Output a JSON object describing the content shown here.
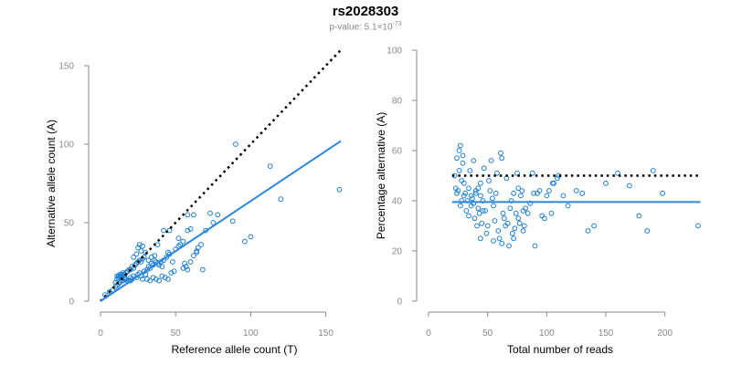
{
  "header": {
    "title": "rs2028303",
    "pvalue_prefix": "p-value: 5.1×10",
    "pvalue_exp": "-73"
  },
  "colors": {
    "points": "#1f7fd6",
    "fit": "#2a86e0",
    "reference": "#000000",
    "axis": "#8a8a8a"
  },
  "chart_data": [
    {
      "type": "scatter",
      "name": "left",
      "xlabel": "Reference allele count (T)",
      "ylabel": "Alternative allele count (A)",
      "xlim": [
        0,
        160
      ],
      "ylim": [
        0,
        150
      ],
      "xticks": [
        0,
        50,
        100,
        150
      ],
      "yticks": [
        0,
        50,
        100,
        150
      ],
      "reference_line": {
        "style": "dotted",
        "x": [
          0,
          160
        ],
        "y": [
          0,
          160
        ]
      },
      "fit_line": {
        "style": "solid",
        "x": [
          0,
          160
        ],
        "y": [
          0,
          102
        ]
      },
      "points": [
        [
          3,
          4
        ],
        [
          6,
          6
        ],
        [
          8,
          7
        ],
        [
          10,
          9
        ],
        [
          11,
          10
        ],
        [
          12,
          11
        ],
        [
          13,
          12
        ],
        [
          14,
          13
        ],
        [
          15,
          13
        ],
        [
          16,
          14
        ],
        [
          10,
          12
        ],
        [
          11,
          14
        ],
        [
          12,
          15
        ],
        [
          13,
          16
        ],
        [
          14,
          15
        ],
        [
          15,
          16
        ],
        [
          16,
          17
        ],
        [
          17,
          18
        ],
        [
          18,
          19
        ],
        [
          19,
          20
        ],
        [
          11,
          16
        ],
        [
          12,
          16
        ],
        [
          13,
          17
        ],
        [
          14,
          17
        ],
        [
          15,
          18
        ],
        [
          16,
          15
        ],
        [
          17,
          14
        ],
        [
          18,
          13
        ],
        [
          19,
          13
        ],
        [
          20,
          15
        ],
        [
          20,
          20
        ],
        [
          21,
          22
        ],
        [
          22,
          21
        ],
        [
          23,
          23
        ],
        [
          24,
          24
        ],
        [
          25,
          25
        ],
        [
          26,
          26
        ],
        [
          27,
          25
        ],
        [
          28,
          27
        ],
        [
          29,
          28
        ],
        [
          20,
          13
        ],
        [
          21,
          14
        ],
        [
          22,
          16
        ],
        [
          24,
          15
        ],
        [
          25,
          17
        ],
        [
          26,
          18
        ],
        [
          27,
          16
        ],
        [
          28,
          14
        ],
        [
          29,
          19
        ],
        [
          30,
          17
        ],
        [
          31,
          20
        ],
        [
          32,
          22
        ],
        [
          33,
          21
        ],
        [
          34,
          24
        ],
        [
          35,
          23
        ],
        [
          36,
          26
        ],
        [
          37,
          25
        ],
        [
          38,
          24
        ],
        [
          39,
          23
        ],
        [
          40,
          25
        ],
        [
          22,
          28
        ],
        [
          24,
          30
        ],
        [
          25,
          34
        ],
        [
          26,
          36
        ],
        [
          27,
          32
        ],
        [
          28,
          35
        ],
        [
          30,
          31
        ],
        [
          32,
          26
        ],
        [
          34,
          28
        ],
        [
          36,
          29
        ],
        [
          31,
          14
        ],
        [
          33,
          13
        ],
        [
          35,
          15
        ],
        [
          37,
          14
        ],
        [
          39,
          13
        ],
        [
          41,
          16
        ],
        [
          43,
          15
        ],
        [
          45,
          14
        ],
        [
          47,
          18
        ],
        [
          49,
          19
        ],
        [
          41,
          22
        ],
        [
          42,
          26
        ],
        [
          44,
          28
        ],
        [
          45,
          31
        ],
        [
          46,
          30
        ],
        [
          48,
          25
        ],
        [
          50,
          33
        ],
        [
          52,
          35
        ],
        [
          53,
          36
        ],
        [
          55,
          38
        ],
        [
          42,
          45
        ],
        [
          38,
          36
        ],
        [
          46,
          45
        ],
        [
          55,
          21
        ],
        [
          56,
          24
        ],
        [
          57,
          22
        ],
        [
          58,
          20
        ],
        [
          60,
          25
        ],
        [
          62,
          29
        ],
        [
          64,
          31
        ],
        [
          65,
          34
        ],
        [
          67,
          36
        ],
        [
          68,
          20
        ],
        [
          52,
          40
        ],
        [
          58,
          45
        ],
        [
          60,
          46
        ],
        [
          70,
          45
        ],
        [
          73,
          56
        ],
        [
          75,
          50
        ],
        [
          78,
          55
        ],
        [
          58,
          55
        ],
        [
          62,
          55
        ],
        [
          64,
          32
        ],
        [
          88,
          51
        ],
        [
          90,
          100
        ],
        [
          96,
          38
        ],
        [
          100,
          41
        ],
        [
          113,
          86
        ],
        [
          120,
          65
        ],
        [
          159,
          71
        ]
      ]
    },
    {
      "type": "scatter",
      "name": "right",
      "xlabel": "Total number of reads",
      "ylabel": "Percentage alternative (A)",
      "xlim": [
        0,
        235
      ],
      "ylim": [
        0,
        100
      ],
      "xticks": [
        0,
        50,
        100,
        150,
        200
      ],
      "yticks": [
        0,
        20,
        40,
        60,
        80,
        100
      ],
      "reference_line": {
        "style": "dotted",
        "x": [
          20,
          230
        ],
        "y": [
          50,
          50
        ]
      },
      "fit_line": {
        "style": "solid",
        "x": [
          20,
          230
        ],
        "y": [
          39.5,
          39.5
        ]
      },
      "points": [
        [
          22,
          50
        ],
        [
          23,
          45
        ],
        [
          24,
          43
        ],
        [
          25,
          44
        ],
        [
          26,
          52
        ],
        [
          27,
          38
        ],
        [
          28,
          40
        ],
        [
          28,
          48
        ],
        [
          29,
          55
        ],
        [
          30,
          47
        ],
        [
          24,
          57
        ],
        [
          26,
          60
        ],
        [
          27,
          62
        ],
        [
          29,
          58
        ],
        [
          30,
          42
        ],
        [
          31,
          43
        ],
        [
          32,
          36
        ],
        [
          33,
          40
        ],
        [
          34,
          45
        ],
        [
          35,
          52
        ],
        [
          36,
          38
        ],
        [
          37,
          41
        ],
        [
          38,
          39
        ],
        [
          39,
          33
        ],
        [
          40,
          44
        ],
        [
          41,
          30
        ],
        [
          42,
          37
        ],
        [
          43,
          35
        ],
        [
          44,
          42
        ],
        [
          45,
          31
        ],
        [
          34,
          34
        ],
        [
          36,
          42
        ],
        [
          38,
          56
        ],
        [
          40,
          43
        ],
        [
          42,
          45
        ],
        [
          44,
          47
        ],
        [
          46,
          40
        ],
        [
          47,
          53
        ],
        [
          48,
          36
        ],
        [
          49,
          27
        ],
        [
          50,
          30
        ],
        [
          51,
          48
        ],
        [
          52,
          44
        ],
        [
          53,
          56
        ],
        [
          54,
          41
        ],
        [
          55,
          38
        ],
        [
          56,
          32
        ],
        [
          57,
          43
        ],
        [
          58,
          51
        ],
        [
          59,
          28
        ],
        [
          60,
          25
        ],
        [
          61,
          59
        ],
        [
          62,
          57
        ],
        [
          63,
          35
        ],
        [
          64,
          33
        ],
        [
          65,
          30
        ],
        [
          66,
          49
        ],
        [
          67,
          31
        ],
        [
          68,
          22
        ],
        [
          69,
          37
        ],
        [
          70,
          40
        ],
        [
          71,
          27
        ],
        [
          72,
          43
        ],
        [
          73,
          29
        ],
        [
          74,
          35
        ],
        [
          75,
          51
        ],
        [
          76,
          33
        ],
        [
          77,
          31
        ],
        [
          78,
          42
        ],
        [
          79,
          44
        ],
        [
          80,
          36
        ],
        [
          81,
          30
        ],
        [
          82,
          37
        ],
        [
          84,
          35
        ],
        [
          86,
          39
        ],
        [
          88,
          51
        ],
        [
          89,
          43
        ],
        [
          90,
          22
        ],
        [
          92,
          43
        ],
        [
          94,
          44
        ],
        [
          96,
          34
        ],
        [
          98,
          33
        ],
        [
          100,
          42
        ],
        [
          102,
          44
        ],
        [
          104,
          35
        ],
        [
          106,
          47
        ],
        [
          110,
          50
        ],
        [
          114,
          42
        ],
        [
          118,
          38
        ],
        [
          125,
          44
        ],
        [
          130,
          43
        ],
        [
          135,
          28
        ],
        [
          140,
          30
        ],
        [
          150,
          47
        ],
        [
          160,
          51
        ],
        [
          170,
          46
        ],
        [
          178,
          34
        ],
        [
          185,
          28
        ],
        [
          190,
          52
        ],
        [
          198,
          43
        ],
        [
          228,
          30
        ],
        [
          55,
          24
        ],
        [
          62,
          23
        ],
        [
          72,
          25
        ],
        [
          80,
          28
        ],
        [
          105,
          47
        ],
        [
          109,
          49
        ],
        [
          76,
          45
        ],
        [
          46,
          36
        ],
        [
          44,
          25
        ]
      ]
    }
  ]
}
